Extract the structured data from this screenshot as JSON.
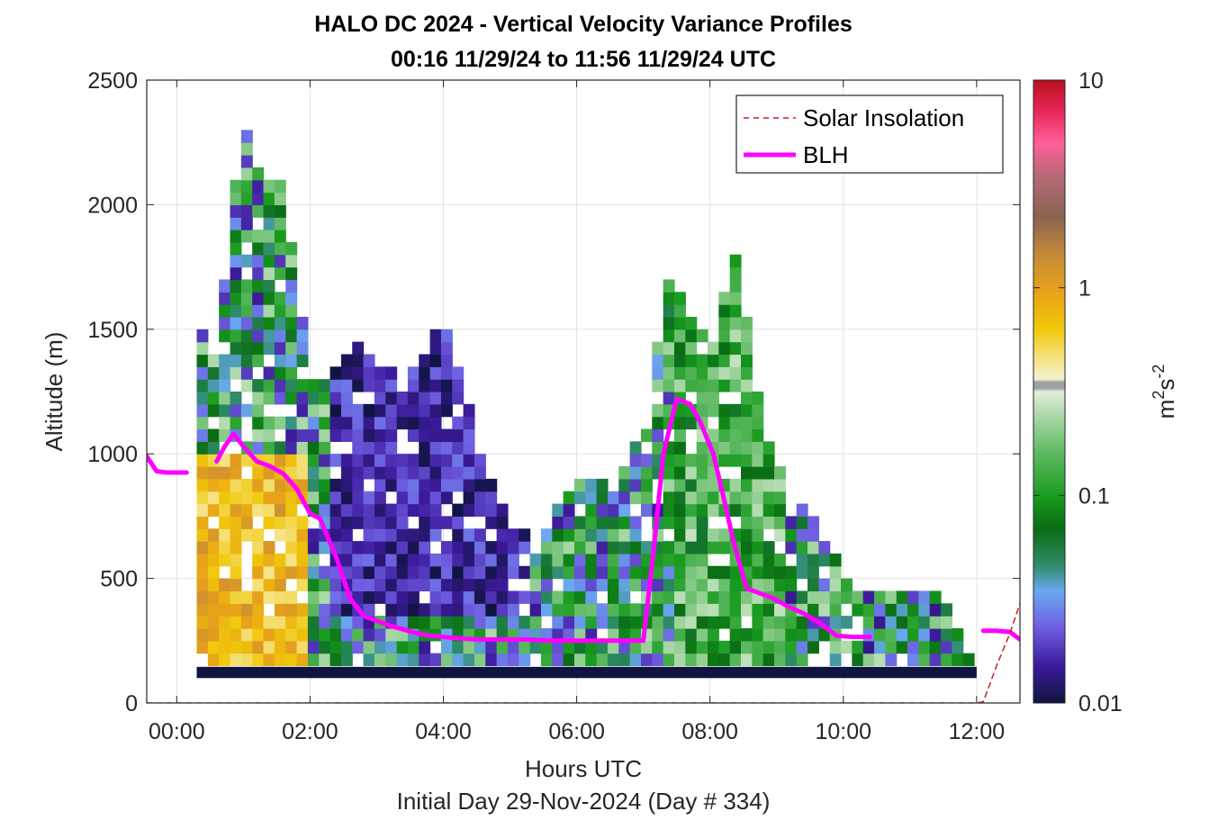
{
  "chart_data": {
    "type": "heatmap",
    "title": "HALO DC 2024 - Vertical Velocity Variance Profiles",
    "subtitle": "00:16 11/29/24 to 11:56 11/29/24  UTC",
    "xlabel": "Hours UTC",
    "xlabel2": "Initial Day 29-Nov-2024 (Day # 334)",
    "ylabel": "Altitude (m)",
    "xlim": [
      -0.45,
      12.65
    ],
    "ylim": [
      0,
      2500
    ],
    "x_ticks": [
      0,
      2,
      4,
      6,
      8,
      10,
      12
    ],
    "x_tick_labels": [
      "00:00",
      "02:00",
      "04:00",
      "06:00",
      "08:00",
      "10:00",
      "12:00"
    ],
    "y_ticks": [
      0,
      500,
      1000,
      1500,
      2000,
      2500
    ],
    "y_tick_labels": [
      "0",
      "500",
      "1000",
      "1500",
      "2000",
      "2500"
    ],
    "grid": true,
    "colorbar": {
      "label_base": "m",
      "label_sup1": "2",
      "label_mid": "s",
      "label_sup2": "-2",
      "scale": "log",
      "range": [
        0.01,
        10
      ],
      "tick_values": [
        0.01,
        0.1,
        1,
        10
      ],
      "tick_labels": [
        "0.01",
        "0.1",
        "1",
        "10"
      ]
    },
    "legend": {
      "placement": "top-right",
      "entries": [
        {
          "label": "Solar Insolation",
          "style": "dashed",
          "color": "#c81e1e"
        },
        {
          "label": "BLH",
          "style": "solid",
          "color": "#ff00ff"
        }
      ]
    },
    "series": [
      {
        "name": "BLH",
        "color": "#ff00ff",
        "x": [
          -0.45,
          -0.3,
          -0.15,
          0.0,
          0.15,
          0.45,
          0.6,
          0.72,
          0.85,
          1.0,
          1.2,
          1.4,
          1.6,
          1.8,
          2.0,
          2.15,
          2.4,
          2.6,
          2.8,
          3.0,
          3.2,
          3.4,
          3.6,
          3.8,
          4.0,
          4.2,
          4.5,
          4.8,
          5.2,
          5.6,
          6.0,
          6.4,
          6.8,
          7.0,
          7.15,
          7.3,
          7.5,
          7.7,
          7.85,
          8.05,
          8.2,
          8.35,
          8.55,
          8.75,
          8.95,
          9.15,
          9.4,
          9.65,
          9.9,
          10.15,
          10.4,
          10.6,
          10.8,
          11.0,
          11.2,
          11.45,
          11.65,
          11.85,
          12.1,
          12.3,
          12.5,
          12.65
        ],
        "y": [
          990,
          930,
          925,
          925,
          925,
          null,
          970,
          1030,
          1080,
          1030,
          970,
          950,
          920,
          860,
          760,
          740,
          580,
          420,
          350,
          330,
          310,
          295,
          280,
          270,
          265,
          260,
          255,
          255,
          255,
          250,
          250,
          250,
          250,
          250,
          600,
          1000,
          1220,
          1200,
          1130,
          1000,
          830,
          650,
          460,
          440,
          420,
          390,
          360,
          320,
          270,
          265,
          265,
          null,
          null,
          null,
          null,
          null,
          null,
          null,
          290,
          290,
          285,
          255
        ]
      },
      {
        "name": "Solar Insolation",
        "color": "#c81e1e",
        "x": [
          -0.45,
          12.0,
          12.1,
          12.3,
          12.5,
          12.65
        ],
        "y": [
          0,
          0,
          5,
          150,
          280,
          400
        ]
      }
    ]
  }
}
